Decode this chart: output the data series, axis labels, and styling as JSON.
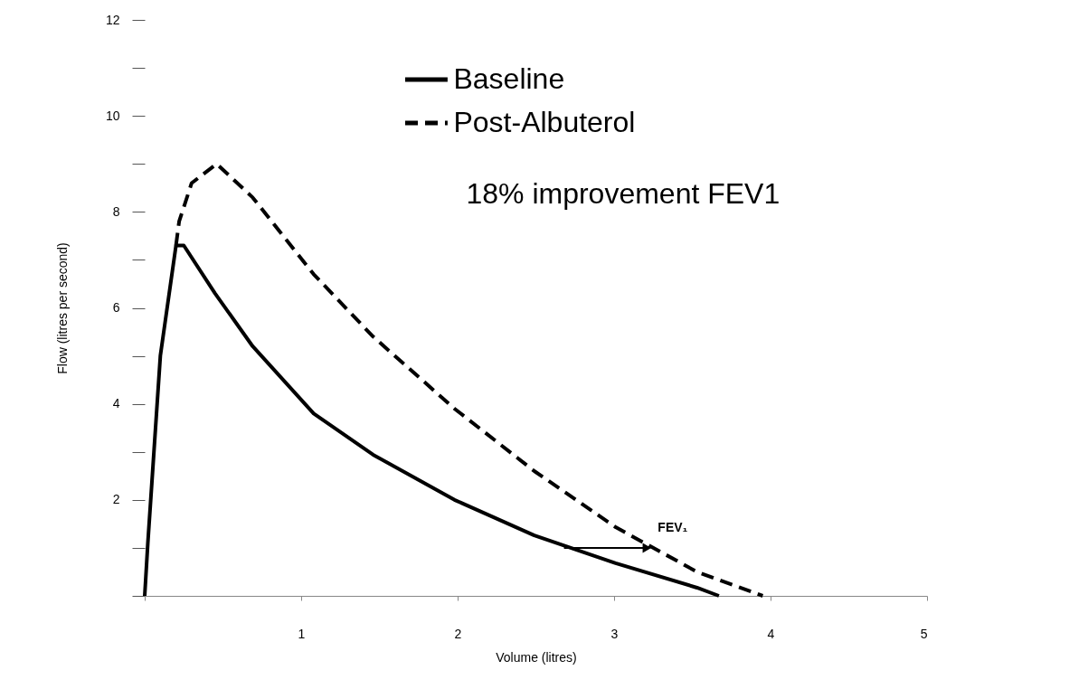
{
  "chart_data": {
    "type": "line",
    "xlabel": "Volume (litres)",
    "ylabel": "Flow (litres per second)",
    "xlim": [
      0,
      5
    ],
    "ylim": [
      0,
      12
    ],
    "xticks": [
      {
        "value": 0,
        "label": null
      },
      1,
      2,
      3,
      4,
      5
    ],
    "yticks": [
      {
        "value": 0,
        "label": null
      },
      {
        "value": 1,
        "label": null
      },
      2,
      {
        "value": 3,
        "label": null
      },
      4,
      {
        "value": 5,
        "label": null
      },
      6,
      {
        "value": 7,
        "label": null
      },
      8,
      {
        "value": 9,
        "label": null
      },
      10,
      {
        "value": 11,
        "label": null
      },
      12
    ],
    "legend": "top right",
    "grid": false,
    "marker": "none",
    "series": [
      {
        "name": "Baseline",
        "color": "#000000",
        "line_style": "solid",
        "x": [
          0,
          0.02,
          0.1,
          0.2,
          0.25,
          0.45,
          0.69,
          1.08,
          1.46,
          1.98,
          2.49,
          3.01,
          3.53,
          3.67
        ],
        "values": [
          0,
          1.1,
          5.0,
          7.3,
          7.3,
          6.3,
          5.2,
          3.8,
          2.94,
          2.0,
          1.26,
          0.68,
          0.17,
          0
        ]
      },
      {
        "name": "Post-Albuterol",
        "color": "#000000",
        "line_style": "dashed",
        "x": [
          0.2,
          0.22,
          0.3,
          0.46,
          0.69,
          1.08,
          1.46,
          1.98,
          2.49,
          3.01,
          3.53,
          3.95
        ],
        "values": [
          7.3,
          7.8,
          8.6,
          9.0,
          8.3,
          6.7,
          5.4,
          3.9,
          2.6,
          1.43,
          0.5,
          0
        ]
      },
      {
        "type": "line",
        "color": "#000000",
        "line_style": "solid",
        "marker": "triangle",
        "x": [
          2.68,
          3.21
        ],
        "values": [
          1.0,
          1.0
        ]
      }
    ],
    "annotations": [
      "18% improvement FEV1",
      {
        "text": "FEV₁",
        "x": 3.21,
        "y": 1.0
      }
    ]
  }
}
